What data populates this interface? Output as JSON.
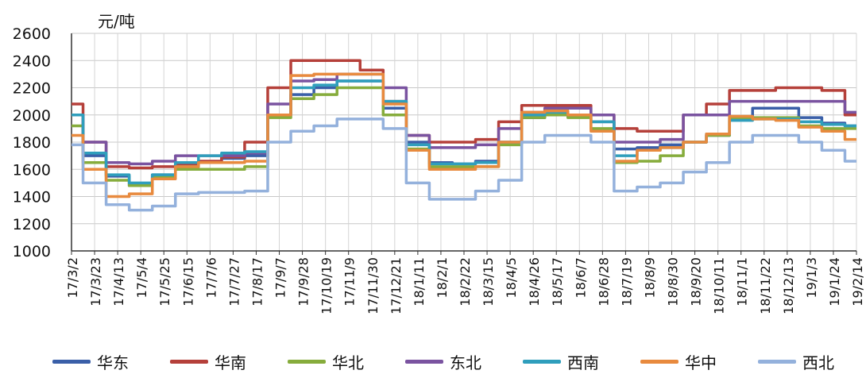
{
  "chart_data": {
    "type": "line",
    "ylabel": "元/吨",
    "ylim": [
      1000,
      2600
    ],
    "yticks": [
      1000,
      1200,
      1400,
      1600,
      1800,
      2000,
      2200,
      2400,
      2600
    ],
    "grid": true,
    "legend_position": "bottom",
    "x_tick_labels": [
      "17/3/2",
      "17/3/23",
      "17/4/13",
      "17/5/4",
      "17/5/25",
      "17/6/15",
      "17/7/6",
      "17/7/27",
      "17/8/17",
      "17/9/7",
      "17/9/28",
      "17/10/19",
      "17/11/9",
      "17/11/30",
      "17/12/21",
      "18/1/11",
      "18/2/1",
      "18/2/22",
      "18/3/15",
      "18/4/5",
      "18/4/26",
      "18/5/17",
      "18/6/7",
      "18/6/28",
      "18/7/19",
      "18/8/9",
      "18/8/30",
      "18/9/20",
      "18/10/11",
      "18/11/1",
      "18/11/22",
      "18/12/13",
      "19/1/3",
      "19/1/24",
      "19/2/14"
    ],
    "series": [
      {
        "name": "华东",
        "color": "#3a5fa8",
        "values": [
          2000,
          1700,
          1550,
          1480,
          1560,
          1620,
          1650,
          1680,
          1700,
          2000,
          2150,
          2200,
          2250,
          2250,
          2050,
          1800,
          1650,
          1640,
          1660,
          1800,
          1980,
          2000,
          2000,
          1950,
          1750,
          1760,
          1780,
          1800,
          1850,
          1980,
          2050,
          2050,
          1980,
          1940,
          1920
        ]
      },
      {
        "name": "华南",
        "color": "#b5403a",
        "values": [
          2080,
          1800,
          1620,
          1610,
          1620,
          1640,
          1660,
          1690,
          1800,
          2200,
          2400,
          2400,
          2400,
          2330,
          2100,
          1850,
          1800,
          1800,
          1820,
          1950,
          2070,
          2070,
          2070,
          2000,
          1900,
          1880,
          1880,
          2000,
          2080,
          2180,
          2180,
          2200,
          2200,
          2180,
          2000
        ]
      },
      {
        "name": "华北",
        "color": "#86ac3c",
        "values": [
          1920,
          1650,
          1520,
          1480,
          1540,
          1600,
          1600,
          1600,
          1620,
          1980,
          2120,
          2150,
          2200,
          2200,
          2000,
          1750,
          1620,
          1620,
          1620,
          1780,
          1980,
          2000,
          1980,
          1900,
          1650,
          1660,
          1700,
          1800,
          1850,
          1980,
          1980,
          1980,
          1920,
          1900,
          1900
        ]
      },
      {
        "name": "东北",
        "color": "#7a53a0",
        "values": [
          2000,
          1800,
          1650,
          1640,
          1660,
          1700,
          1700,
          1700,
          1720,
          2080,
          2250,
          2260,
          2300,
          2300,
          2200,
          1850,
          1760,
          1760,
          1780,
          1900,
          2020,
          2050,
          2050,
          2000,
          1800,
          1800,
          1820,
          2000,
          2000,
          2100,
          2100,
          2100,
          2100,
          2100,
          2020
        ]
      },
      {
        "name": "西南",
        "color": "#2f9ebc",
        "values": [
          2000,
          1720,
          1560,
          1500,
          1560,
          1650,
          1700,
          1720,
          1730,
          2000,
          2200,
          2220,
          2250,
          2250,
          2100,
          1780,
          1640,
          1640,
          1650,
          1800,
          2000,
          2020,
          2000,
          1950,
          1700,
          1740,
          1760,
          1800,
          1860,
          1960,
          1970,
          1970,
          1950,
          1930,
          1920
        ]
      },
      {
        "name": "华中",
        "color": "#e88a3e",
        "values": [
          1850,
          1600,
          1400,
          1420,
          1530,
          1620,
          1650,
          1650,
          1660,
          2000,
          2290,
          2300,
          2300,
          2300,
          2080,
          1740,
          1600,
          1600,
          1620,
          1800,
          2020,
          2030,
          2000,
          1880,
          1660,
          1740,
          1760,
          1800,
          1860,
          1990,
          1970,
          1960,
          1910,
          1880,
          1820
        ]
      },
      {
        "name": "西北",
        "color": "#94b1dc",
        "values": [
          1780,
          1500,
          1340,
          1300,
          1330,
          1420,
          1430,
          1430,
          1440,
          1800,
          1880,
          1920,
          1970,
          1970,
          1900,
          1500,
          1380,
          1380,
          1440,
          1520,
          1800,
          1850,
          1850,
          1800,
          1440,
          1470,
          1500,
          1580,
          1650,
          1800,
          1850,
          1850,
          1800,
          1740,
          1660
        ]
      }
    ]
  }
}
